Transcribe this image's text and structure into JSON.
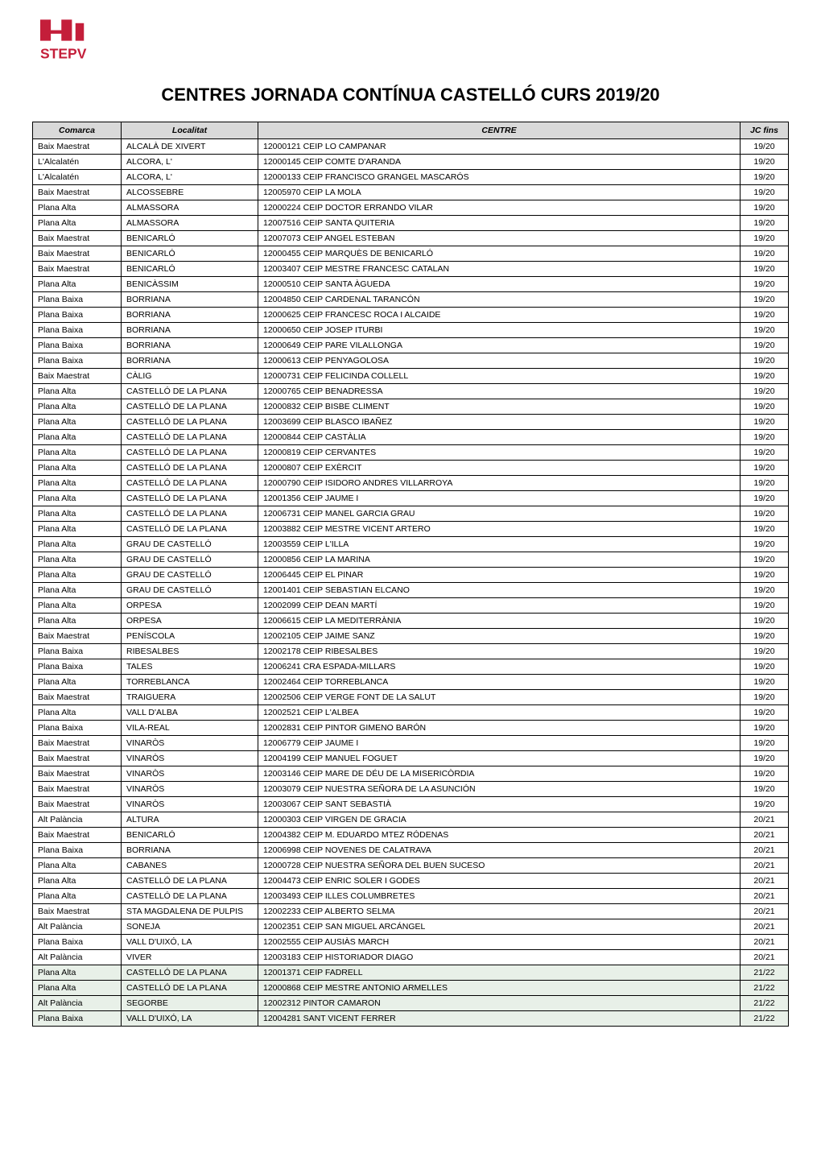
{
  "title": "CENTRES JORNADA CONTÍNUA CASTELLÓ CURS 2019/20",
  "logo_color": "#c41e3a",
  "table": {
    "columns": [
      "Comarca",
      "Localitat",
      "CENTRE",
      "JC fins"
    ],
    "highlight_color": "#e8f0e8",
    "rows": [
      {
        "comarca": "Baix Maestrat",
        "localitat": "ALCALÀ DE XIVERT",
        "centre": "12000121 CEIP LO CAMPANAR",
        "jcfins": "19/20",
        "highlighted": false
      },
      {
        "comarca": "L'Alcalatén",
        "localitat": "ALCORA, L'",
        "centre": "12000145 CEIP COMTE D'ARANDA",
        "jcfins": "19/20",
        "highlighted": false
      },
      {
        "comarca": "L'Alcalatén",
        "localitat": "ALCORA, L'",
        "centre": "12000133 CEIP FRANCISCO GRANGEL MASCARÓS",
        "jcfins": "19/20",
        "highlighted": false
      },
      {
        "comarca": "Baix Maestrat",
        "localitat": "ALCOSSEBRE",
        "centre": "12005970 CEIP LA MOLA",
        "jcfins": "19/20",
        "highlighted": false
      },
      {
        "comarca": "Plana Alta",
        "localitat": "ALMASSORA",
        "centre": "12000224 CEIP DOCTOR ERRANDO VILAR",
        "jcfins": "19/20",
        "highlighted": false
      },
      {
        "comarca": "Plana Alta",
        "localitat": "ALMASSORA",
        "centre": "12007516 CEIP SANTA QUITERIA",
        "jcfins": "19/20",
        "highlighted": false
      },
      {
        "comarca": "Baix Maestrat",
        "localitat": "BENICARLÓ",
        "centre": "12007073 CEIP ANGEL ESTEBAN",
        "jcfins": "19/20",
        "highlighted": false
      },
      {
        "comarca": "Baix Maestrat",
        "localitat": "BENICARLÓ",
        "centre": "12000455 CEIP MARQUÈS DE BENICARLÓ",
        "jcfins": "19/20",
        "highlighted": false
      },
      {
        "comarca": "Baix Maestrat",
        "localitat": "BENICARLÓ",
        "centre": "12003407 CEIP MESTRE FRANCESC CATALAN",
        "jcfins": "19/20",
        "highlighted": false
      },
      {
        "comarca": "Plana Alta",
        "localitat": "BENICÀSSIM",
        "centre": "12000510 CEIP SANTA ÀGUEDA",
        "jcfins": "19/20",
        "highlighted": false
      },
      {
        "comarca": "Plana Baixa",
        "localitat": "BORRIANA",
        "centre": "12004850 CEIP CARDENAL TARANCÓN",
        "jcfins": "19/20",
        "highlighted": false
      },
      {
        "comarca": "Plana Baixa",
        "localitat": "BORRIANA",
        "centre": "12000625 CEIP FRANCESC ROCA I ALCAIDE",
        "jcfins": "19/20",
        "highlighted": false
      },
      {
        "comarca": "Plana Baixa",
        "localitat": "BORRIANA",
        "centre": "12000650 CEIP JOSEP ITURBI",
        "jcfins": "19/20",
        "highlighted": false
      },
      {
        "comarca": "Plana Baixa",
        "localitat": "BORRIANA",
        "centre": "12000649 CEIP PARE VILALLONGA",
        "jcfins": "19/20",
        "highlighted": false
      },
      {
        "comarca": "Plana Baixa",
        "localitat": "BORRIANA",
        "centre": "12000613 CEIP PENYAGOLOSA",
        "jcfins": "19/20",
        "highlighted": false
      },
      {
        "comarca": "Baix Maestrat",
        "localitat": "CÀLIG",
        "centre": "12000731 CEIP FELICINDA COLLELL",
        "jcfins": "19/20",
        "highlighted": false
      },
      {
        "comarca": "Plana Alta",
        "localitat": "CASTELLÓ DE LA PLANA",
        "centre": "12000765 CEIP BENADRESSA",
        "jcfins": "19/20",
        "highlighted": false
      },
      {
        "comarca": "Plana Alta",
        "localitat": "CASTELLÓ DE LA PLANA",
        "centre": "12000832 CEIP BISBE CLIMENT",
        "jcfins": "19/20",
        "highlighted": false
      },
      {
        "comarca": "Plana Alta",
        "localitat": "CASTELLÓ DE LA PLANA",
        "centre": "12003699 CEIP BLASCO IBAÑEZ",
        "jcfins": "19/20",
        "highlighted": false
      },
      {
        "comarca": "Plana Alta",
        "localitat": "CASTELLÓ DE LA PLANA",
        "centre": "12000844 CEIP CASTÀLIA",
        "jcfins": "19/20",
        "highlighted": false
      },
      {
        "comarca": "Plana Alta",
        "localitat": "CASTELLÓ DE LA PLANA",
        "centre": "12000819 CEIP CERVANTES",
        "jcfins": "19/20",
        "highlighted": false
      },
      {
        "comarca": "Plana Alta",
        "localitat": "CASTELLÓ DE LA PLANA",
        "centre": "12000807 CEIP EXÈRCIT",
        "jcfins": "19/20",
        "highlighted": false
      },
      {
        "comarca": "Plana Alta",
        "localitat": "CASTELLÓ DE LA PLANA",
        "centre": "12000790 CEIP ISIDORO ANDRES VILLARROYA",
        "jcfins": "19/20",
        "highlighted": false
      },
      {
        "comarca": "Plana Alta",
        "localitat": "CASTELLÓ DE LA PLANA",
        "centre": "12001356 CEIP JAUME I",
        "jcfins": "19/20",
        "highlighted": false
      },
      {
        "comarca": "Plana Alta",
        "localitat": "CASTELLÓ DE LA PLANA",
        "centre": "12006731 CEIP MANEL GARCIA GRAU",
        "jcfins": "19/20",
        "highlighted": false
      },
      {
        "comarca": "Plana Alta",
        "localitat": "CASTELLÓ DE LA PLANA",
        "centre": "12003882 CEIP MESTRE VICENT ARTERO",
        "jcfins": "19/20",
        "highlighted": false
      },
      {
        "comarca": "Plana Alta",
        "localitat": "GRAU DE CASTELLÓ",
        "centre": "12003559 CEIP L'ILLA",
        "jcfins": "19/20",
        "highlighted": false
      },
      {
        "comarca": "Plana Alta",
        "localitat": "GRAU DE CASTELLÓ",
        "centre": "12000856 CEIP LA MARINA",
        "jcfins": "19/20",
        "highlighted": false
      },
      {
        "comarca": "Plana Alta",
        "localitat": "GRAU DE CASTELLÓ",
        "centre": "12006445 CEIP EL PINAR",
        "jcfins": "19/20",
        "highlighted": false
      },
      {
        "comarca": "Plana Alta",
        "localitat": "GRAU DE CASTELLÓ",
        "centre": "12001401 CEIP SEBASTIAN ELCANO",
        "jcfins": "19/20",
        "highlighted": false
      },
      {
        "comarca": "Plana Alta",
        "localitat": "ORPESA",
        "centre": "12002099 CEIP DEAN MARTÍ",
        "jcfins": "19/20",
        "highlighted": false
      },
      {
        "comarca": "Plana Alta",
        "localitat": "ORPESA",
        "centre": "12006615 CEIP LA MEDITERRÀNIA",
        "jcfins": "19/20",
        "highlighted": false
      },
      {
        "comarca": "Baix Maestrat",
        "localitat": "PENÍSCOLA",
        "centre": "12002105 CEIP JAIME SANZ",
        "jcfins": "19/20",
        "highlighted": false
      },
      {
        "comarca": "Plana Baixa",
        "localitat": "RIBESALBES",
        "centre": "12002178 CEIP RIBESALBES",
        "jcfins": "19/20",
        "highlighted": false
      },
      {
        "comarca": "Plana Baixa",
        "localitat": "TALES",
        "centre": "12006241 CRA ESPADA-MILLARS",
        "jcfins": "19/20",
        "highlighted": false
      },
      {
        "comarca": "Plana Alta",
        "localitat": "TORREBLANCA",
        "centre": "12002464 CEIP TORREBLANCA",
        "jcfins": "19/20",
        "highlighted": false
      },
      {
        "comarca": "Baix Maestrat",
        "localitat": "TRAIGUERA",
        "centre": "12002506 CEIP VERGE FONT DE LA SALUT",
        "jcfins": "19/20",
        "highlighted": false
      },
      {
        "comarca": "Plana Alta",
        "localitat": "VALL D'ALBA",
        "centre": "12002521 CEIP L'ALBEA",
        "jcfins": "19/20",
        "highlighted": false
      },
      {
        "comarca": "Plana Baixa",
        "localitat": "VILA-REAL",
        "centre": "12002831 CEIP PINTOR GIMENO BARÓN",
        "jcfins": "19/20",
        "highlighted": false
      },
      {
        "comarca": "Baix Maestrat",
        "localitat": "VINARÒS",
        "centre": "12006779 CEIP JAUME I",
        "jcfins": "19/20",
        "highlighted": false
      },
      {
        "comarca": "Baix Maestrat",
        "localitat": "VINARÒS",
        "centre": "12004199 CEIP MANUEL FOGUET",
        "jcfins": "19/20",
        "highlighted": false
      },
      {
        "comarca": "Baix Maestrat",
        "localitat": "VINARÒS",
        "centre": "12003146 CEIP MARE DE DÉU DE LA MISERICÒRDIA",
        "jcfins": "19/20",
        "highlighted": false
      },
      {
        "comarca": "Baix Maestrat",
        "localitat": "VINARÒS",
        "centre": "12003079 CEIP NUESTRA SEÑORA DE LA ASUNCIÓN",
        "jcfins": "19/20",
        "highlighted": false
      },
      {
        "comarca": "Baix Maestrat",
        "localitat": "VINARÒS",
        "centre": "12003067 CEIP SANT SEBASTIÀ",
        "jcfins": "19/20",
        "highlighted": false
      },
      {
        "comarca": "Alt Palància",
        "localitat": "ALTURA",
        "centre": "12000303 CEIP VIRGEN DE GRACIA",
        "jcfins": "20/21",
        "highlighted": false
      },
      {
        "comarca": "Baix Maestrat",
        "localitat": "BENICARLÓ",
        "centre": "12004382 CEIP M. EDUARDO MTEZ RÓDENAS",
        "jcfins": "20/21",
        "highlighted": false
      },
      {
        "comarca": "Plana Baixa",
        "localitat": "BORRIANA",
        "centre": "12006998 CEIP NOVENES DE CALATRAVA",
        "jcfins": "20/21",
        "highlighted": false
      },
      {
        "comarca": "Plana Alta",
        "localitat": "CABANES",
        "centre": "12000728 CEIP NUESTRA SEÑORA DEL BUEN SUCESO",
        "jcfins": "20/21",
        "highlighted": false
      },
      {
        "comarca": "Plana Alta",
        "localitat": "CASTELLÓ DE LA PLANA",
        "centre": "12004473 CEIP ENRIC SOLER I GODES",
        "jcfins": "20/21",
        "highlighted": false
      },
      {
        "comarca": "Plana Alta",
        "localitat": "CASTELLÓ DE LA PLANA",
        "centre": "12003493 CEIP ILLES COLUMBRETES",
        "jcfins": "20/21",
        "highlighted": false
      },
      {
        "comarca": "Baix Maestrat",
        "localitat": "STA MAGDALENA DE PULPIS",
        "centre": "12002233 CEIP ALBERTO SELMA",
        "jcfins": "20/21",
        "highlighted": false
      },
      {
        "comarca": "Alt Palància",
        "localitat": "SONEJA",
        "centre": "12002351 CEIP SAN MIGUEL ARCÁNGEL",
        "jcfins": "20/21",
        "highlighted": false
      },
      {
        "comarca": "Plana Baixa",
        "localitat": "VALL D'UIXÓ, LA",
        "centre": "12002555 CEIP AUSIÀS MARCH",
        "jcfins": "20/21",
        "highlighted": false
      },
      {
        "comarca": "Alt Palància",
        "localitat": "VIVER",
        "centre": "12003183 CEIP HISTORIADOR DIAGO",
        "jcfins": "20/21",
        "highlighted": false
      },
      {
        "comarca": "Plana Alta",
        "localitat": "CASTELLÓ DE LA PLANA",
        "centre": "12001371 CEIP FADRELL",
        "jcfins": "21/22",
        "highlighted": true
      },
      {
        "comarca": "Plana Alta",
        "localitat": "CASTELLÓ DE LA PLANA",
        "centre": "12000868 CEIP MESTRE ANTONIO ARMELLES",
        "jcfins": "21/22",
        "highlighted": true
      },
      {
        "comarca": "Alt Palància",
        "localitat": "SEGORBE",
        "centre": "12002312 PINTOR CAMARON",
        "jcfins": "21/22",
        "highlighted": true
      },
      {
        "comarca": "Plana Baixa",
        "localitat": "VALL D'UIXÓ, LA",
        "centre": "12004281 SANT VICENT FERRER",
        "jcfins": "21/22",
        "highlighted": true
      }
    ]
  }
}
